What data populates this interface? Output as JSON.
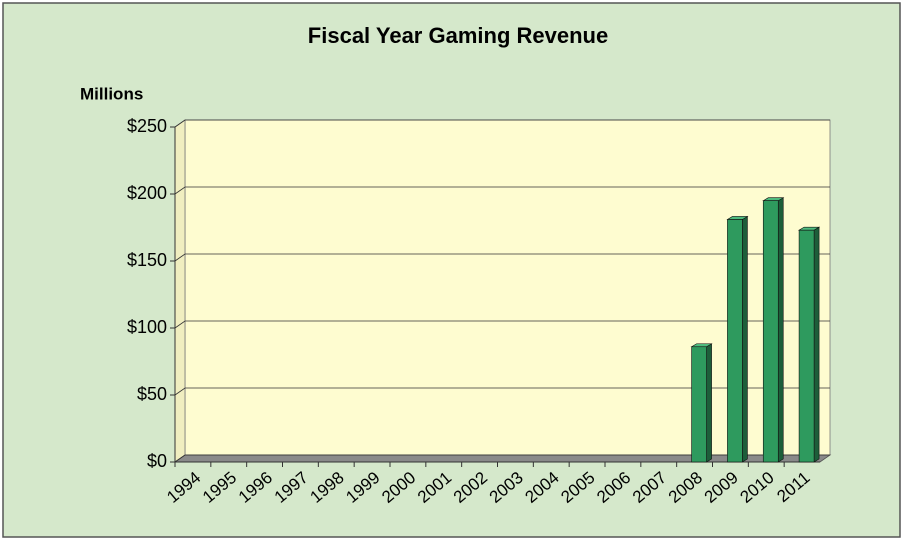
{
  "chart_data": {
    "type": "bar",
    "title": "Fiscal Year Gaming Revenue",
    "y_label": "Millions",
    "categories": [
      "1994",
      "1995",
      "1996",
      "1997",
      "1998",
      "1999",
      "2000",
      "2001",
      "2002",
      "2003",
      "2004",
      "2005",
      "2006",
      "2007",
      "2008",
      "2009",
      "2010",
      "2011"
    ],
    "values": [
      0,
      0,
      0,
      0,
      0,
      0,
      0,
      0,
      0,
      0,
      0,
      0,
      0,
      0,
      86,
      181,
      195,
      173
    ],
    "color": "#2e9a5e",
    "ylim": [
      0,
      250
    ],
    "yticks": [
      {
        "value": 0,
        "label": "$0"
      },
      {
        "value": 50,
        "label": "$50"
      },
      {
        "value": 100,
        "label": "$100"
      },
      {
        "value": 150,
        "label": "$150"
      },
      {
        "value": 200,
        "label": "$200"
      },
      {
        "value": 250,
        "label": "$250"
      }
    ],
    "grid": true
  }
}
